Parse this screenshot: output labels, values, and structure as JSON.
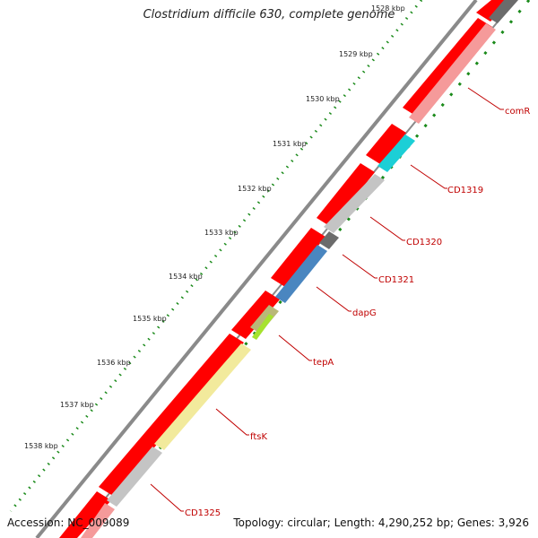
{
  "title": "Clostridium difficile 630, complete genome",
  "footer": {
    "accession": "Accession: NC_009089",
    "summary": "Topology: circular; Length: 4,290,252 bp; Genes: 3,926"
  },
  "ticks": [
    "1528 kbp",
    "1529 kbp",
    "1530 kbp",
    "1531 kbp",
    "1532 kbp",
    "1533 kbp",
    "1534 kbp",
    "1535 kbp",
    "1536 kbp",
    "1537 kbp",
    "1538 kbp"
  ],
  "genes": [
    {
      "label": "comR",
      "color": "#f59a9a"
    },
    {
      "label": "CD1319",
      "color": "#1ccfd6"
    },
    {
      "label": "CD1320",
      "color": "#c4c4c4"
    },
    {
      "label": "CD1321",
      "color": "#6b6b6b"
    },
    {
      "label": "dapG",
      "color": "#4a86c0"
    },
    {
      "label": "tepA",
      "color": "#b9b878"
    },
    {
      "label": "ftsK",
      "color": "#f2ea9c"
    },
    {
      "label": "CD1325",
      "color": "#c4c4c4"
    }
  ],
  "colors": {
    "backbone": "#8a8a8a",
    "feature_red": "#ff0000",
    "tick_green": "#1a8a1a",
    "label_red": "#c00000",
    "small_green": "#a6e22e"
  }
}
